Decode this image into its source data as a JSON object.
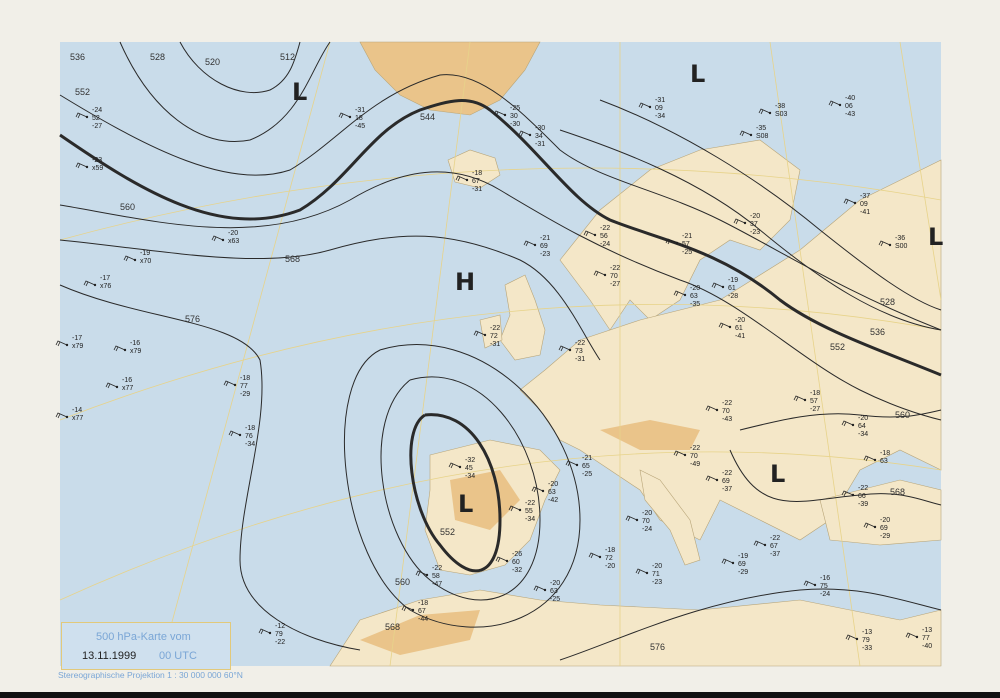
{
  "map": {
    "title": "500 hPa-Karte vom",
    "date": "13.11.1999",
    "time": "00 UTC",
    "projection": "Stereographische Projektion   1 : 30 000 000  60°N",
    "colors": {
      "sea": "#c9dcea",
      "land": "#f4e7c8",
      "highland": "#eac48a",
      "graticule": "#e7d38a",
      "contour": "#2a2a2a"
    },
    "pressure_centers": [
      {
        "label": "L",
        "name": "low-iceland-west"
      },
      {
        "label": "L",
        "name": "low-north-scandinavia"
      },
      {
        "label": "L",
        "name": "low-russia"
      },
      {
        "label": "H",
        "name": "high-atlantic"
      },
      {
        "label": "L",
        "name": "low-iberia"
      },
      {
        "label": "L",
        "name": "low-balkans"
      }
    ],
    "contour_labels": [
      "552",
      "544",
      "536",
      "528",
      "520",
      "512",
      "560",
      "568",
      "576",
      "552",
      "560",
      "568",
      "576",
      "560",
      "568",
      "536",
      "528",
      "552"
    ],
    "stations": [
      [
        "-20",
        "x63",
        ""
      ],
      [
        "-19",
        "x70",
        ""
      ],
      [
        "-17",
        "x76",
        ""
      ],
      [
        "-17",
        "x79",
        ""
      ],
      [
        "-16",
        "x79",
        ""
      ],
      [
        "-16",
        "x77",
        ""
      ],
      [
        "-14",
        "x77",
        ""
      ],
      [
        "-18",
        "77",
        "-29"
      ],
      [
        "-18",
        "76",
        "-34"
      ],
      [
        "-32",
        "45",
        "-34"
      ],
      [
        "-22",
        "55",
        "-34"
      ],
      [
        "-26",
        "60",
        "-32"
      ],
      [
        "-22",
        "58",
        "-47"
      ],
      [
        "-18",
        "67",
        "-44"
      ],
      [
        "-12",
        "79",
        "-22"
      ],
      [
        "-18",
        "67",
        "-31"
      ],
      [
        "-21",
        "69",
        "-23"
      ],
      [
        "-22",
        "73",
        "-31"
      ],
      [
        "-22",
        "72",
        "-31"
      ],
      [
        "-22",
        "70",
        "-27"
      ],
      [
        "-20",
        "63",
        "-35"
      ],
      [
        "-19",
        "61",
        "-28"
      ],
      [
        "-20",
        "61",
        "-41"
      ],
      [
        "-22",
        "70",
        "-43"
      ],
      [
        "-22",
        "70",
        "-49"
      ],
      [
        "-22",
        "69",
        "-37"
      ],
      [
        "-22",
        "67",
        "-37"
      ],
      [
        "-18",
        "57",
        "-27"
      ],
      [
        "-20",
        "64",
        "-34"
      ],
      [
        "-18",
        "63",
        ""
      ],
      [
        "-22",
        "66",
        "-39"
      ],
      [
        "-20",
        "69",
        "-29"
      ],
      [
        "-16",
        "75",
        "-24"
      ],
      [
        "-13",
        "77",
        "-40"
      ],
      [
        "-13",
        "79",
        "-33"
      ],
      [
        "-19",
        "69",
        "-29"
      ],
      [
        "-20",
        "71",
        "-23"
      ],
      [
        "-18",
        "72",
        "-20"
      ],
      [
        "-20",
        "63",
        "-25"
      ],
      [
        "-21",
        "65",
        "-25"
      ],
      [
        "-20",
        "63",
        "-42"
      ],
      [
        "-20",
        "70",
        "-24"
      ],
      [
        "-40",
        "06",
        "-43"
      ],
      [
        "-38",
        "S03",
        ""
      ],
      [
        "-35",
        "S08",
        ""
      ],
      [
        "-37",
        "09",
        "-41"
      ],
      [
        "-36",
        "S00",
        ""
      ],
      [
        "-22",
        "56",
        "-24"
      ],
      [
        "-21",
        "57",
        "-25"
      ],
      [
        "-20",
        "37",
        "-23"
      ],
      [
        "-31",
        "18",
        "-45"
      ],
      [
        "-25",
        "30",
        "-30"
      ],
      [
        "-30",
        "34",
        "-31"
      ],
      [
        "-31",
        "09",
        "-34"
      ],
      [
        "-23",
        "x59",
        ""
      ],
      [
        "-24",
        "52",
        "-27"
      ]
    ]
  }
}
